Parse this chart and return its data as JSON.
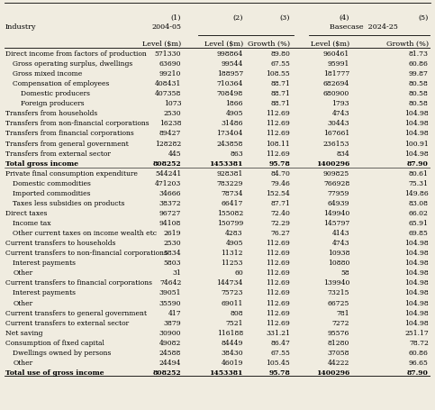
{
  "rows": [
    {
      "label": "Direct income from factors of production",
      "indent": 0,
      "bold": false,
      "values": [
        "571330",
        "998864",
        "89.80",
        "960461",
        "81.73"
      ]
    },
    {
      "label": "Gross operating surplus, dwellings",
      "indent": 1,
      "bold": false,
      "values": [
        "63690",
        "99544",
        "67.55",
        "95991",
        "60.86"
      ]
    },
    {
      "label": "Gross mixed income",
      "indent": 1,
      "bold": false,
      "values": [
        "99210",
        "188957",
        "108.55",
        "181777",
        "99.87"
      ]
    },
    {
      "label": "Compensation of employees",
      "indent": 1,
      "bold": false,
      "values": [
        "408431",
        "710364",
        "88.71",
        "682694",
        "80.58"
      ]
    },
    {
      "label": "Domestic producers",
      "indent": 2,
      "bold": false,
      "values": [
        "407358",
        "708498",
        "88.71",
        "680900",
        "80.58"
      ]
    },
    {
      "label": "Foreign producers",
      "indent": 2,
      "bold": false,
      "values": [
        "1073",
        "1866",
        "88.71",
        "1793",
        "80.58"
      ]
    },
    {
      "label": "Transfers from households",
      "indent": 0,
      "bold": false,
      "values": [
        "2530",
        "4905",
        "112.69",
        "4743",
        "104.98"
      ]
    },
    {
      "label": "Transfers from non-financial corporations",
      "indent": 0,
      "bold": false,
      "values": [
        "16238",
        "31486",
        "112.69",
        "30443",
        "104.98"
      ]
    },
    {
      "label": "Transfers from financial corporations",
      "indent": 0,
      "bold": false,
      "values": [
        "89427",
        "173404",
        "112.69",
        "167661",
        "104.98"
      ]
    },
    {
      "label": "Transfers from general government",
      "indent": 0,
      "bold": false,
      "values": [
        "128282",
        "243858",
        "108.11",
        "236153",
        "100.91"
      ]
    },
    {
      "label": "Transfers from external sector",
      "indent": 0,
      "bold": false,
      "values": [
        "445",
        "863",
        "112.69",
        "834",
        "104.98"
      ]
    },
    {
      "label": "Total gross income",
      "indent": 0,
      "bold": true,
      "values": [
        "808252",
        "1453381",
        "95.78",
        "1400296",
        "87.90"
      ]
    },
    {
      "label": "Private final consumption expenditure",
      "indent": 0,
      "bold": false,
      "values": [
        "544241",
        "928381",
        "84.70",
        "909825",
        "80.61"
      ]
    },
    {
      "label": "Domestic commodities",
      "indent": 1,
      "bold": false,
      "values": [
        "471203",
        "783229",
        "79.46",
        "766928",
        "75.31"
      ]
    },
    {
      "label": "Imported commodities",
      "indent": 1,
      "bold": false,
      "values": [
        "34666",
        "78734",
        "152.54",
        "77959",
        "149.86"
      ]
    },
    {
      "label": "Taxes less subsidies on products",
      "indent": 1,
      "bold": false,
      "values": [
        "38372",
        "66417",
        "87.71",
        "64939",
        "83.08"
      ]
    },
    {
      "label": "Direct taxes",
      "indent": 0,
      "bold": false,
      "values": [
        "96727",
        "155082",
        "72.40",
        "149940",
        "66.02"
      ]
    },
    {
      "label": "Income tax",
      "indent": 1,
      "bold": false,
      "values": [
        "94108",
        "150799",
        "72.29",
        "145797",
        "65.91"
      ]
    },
    {
      "label": "Other current taxes on income wealth etc",
      "indent": 1,
      "bold": false,
      "values": [
        "2619",
        "4283",
        "76.27",
        "4143",
        "69.85"
      ]
    },
    {
      "label": "Current transfers to households",
      "indent": 0,
      "bold": false,
      "values": [
        "2530",
        "4905",
        "112.69",
        "4743",
        "104.98"
      ]
    },
    {
      "label": "Current transfers to non-financial corporations",
      "indent": 0,
      "bold": false,
      "values": [
        "5834",
        "11312",
        "112.69",
        "10938",
        "104.98"
      ]
    },
    {
      "label": "Interest payments",
      "indent": 1,
      "bold": false,
      "values": [
        "5803",
        "11253",
        "112.69",
        "10880",
        "104.98"
      ]
    },
    {
      "label": "Other",
      "indent": 1,
      "bold": false,
      "values": [
        "31",
        "60",
        "112.69",
        "58",
        "104.98"
      ]
    },
    {
      "label": "Current transfers to financial corporations",
      "indent": 0,
      "bold": false,
      "values": [
        "74642",
        "144734",
        "112.69",
        "139940",
        "104.98"
      ]
    },
    {
      "label": "Interest payments",
      "indent": 1,
      "bold": false,
      "values": [
        "39051",
        "75723",
        "112.69",
        "73215",
        "104.98"
      ]
    },
    {
      "label": "Other",
      "indent": 1,
      "bold": false,
      "values": [
        "35590",
        "69011",
        "112.69",
        "66725",
        "104.98"
      ]
    },
    {
      "label": "Current transfers to general government",
      "indent": 0,
      "bold": false,
      "values": [
        "417",
        "808",
        "112.69",
        "781",
        "104.98"
      ]
    },
    {
      "label": "Current transfers to external sector",
      "indent": 0,
      "bold": false,
      "values": [
        "3879",
        "7521",
        "112.69",
        "7272",
        "104.98"
      ]
    },
    {
      "label": "Net saving",
      "indent": 0,
      "bold": false,
      "values": [
        "30900",
        "116188",
        "331.21",
        "95576",
        "251.17"
      ]
    },
    {
      "label": "Consumption of fixed capital",
      "indent": 0,
      "bold": false,
      "values": [
        "49082",
        "84449",
        "86.47",
        "81280",
        "78.72"
      ]
    },
    {
      "label": "Dwellings owned by persons",
      "indent": 1,
      "bold": false,
      "values": [
        "24588",
        "38430",
        "67.55",
        "37058",
        "60.86"
      ]
    },
    {
      "label": "Other",
      "indent": 1,
      "bold": false,
      "values": [
        "24494",
        "46019",
        "105.45",
        "44222",
        "96.65"
      ]
    },
    {
      "label": "Total use of gross income",
      "indent": 0,
      "bold": true,
      "values": [
        "808252",
        "1453381",
        "95.78",
        "1400296",
        "87.90"
      ]
    }
  ],
  "background_color": "#f0ece0",
  "font_size": 5.5,
  "header_font_size": 5.8
}
